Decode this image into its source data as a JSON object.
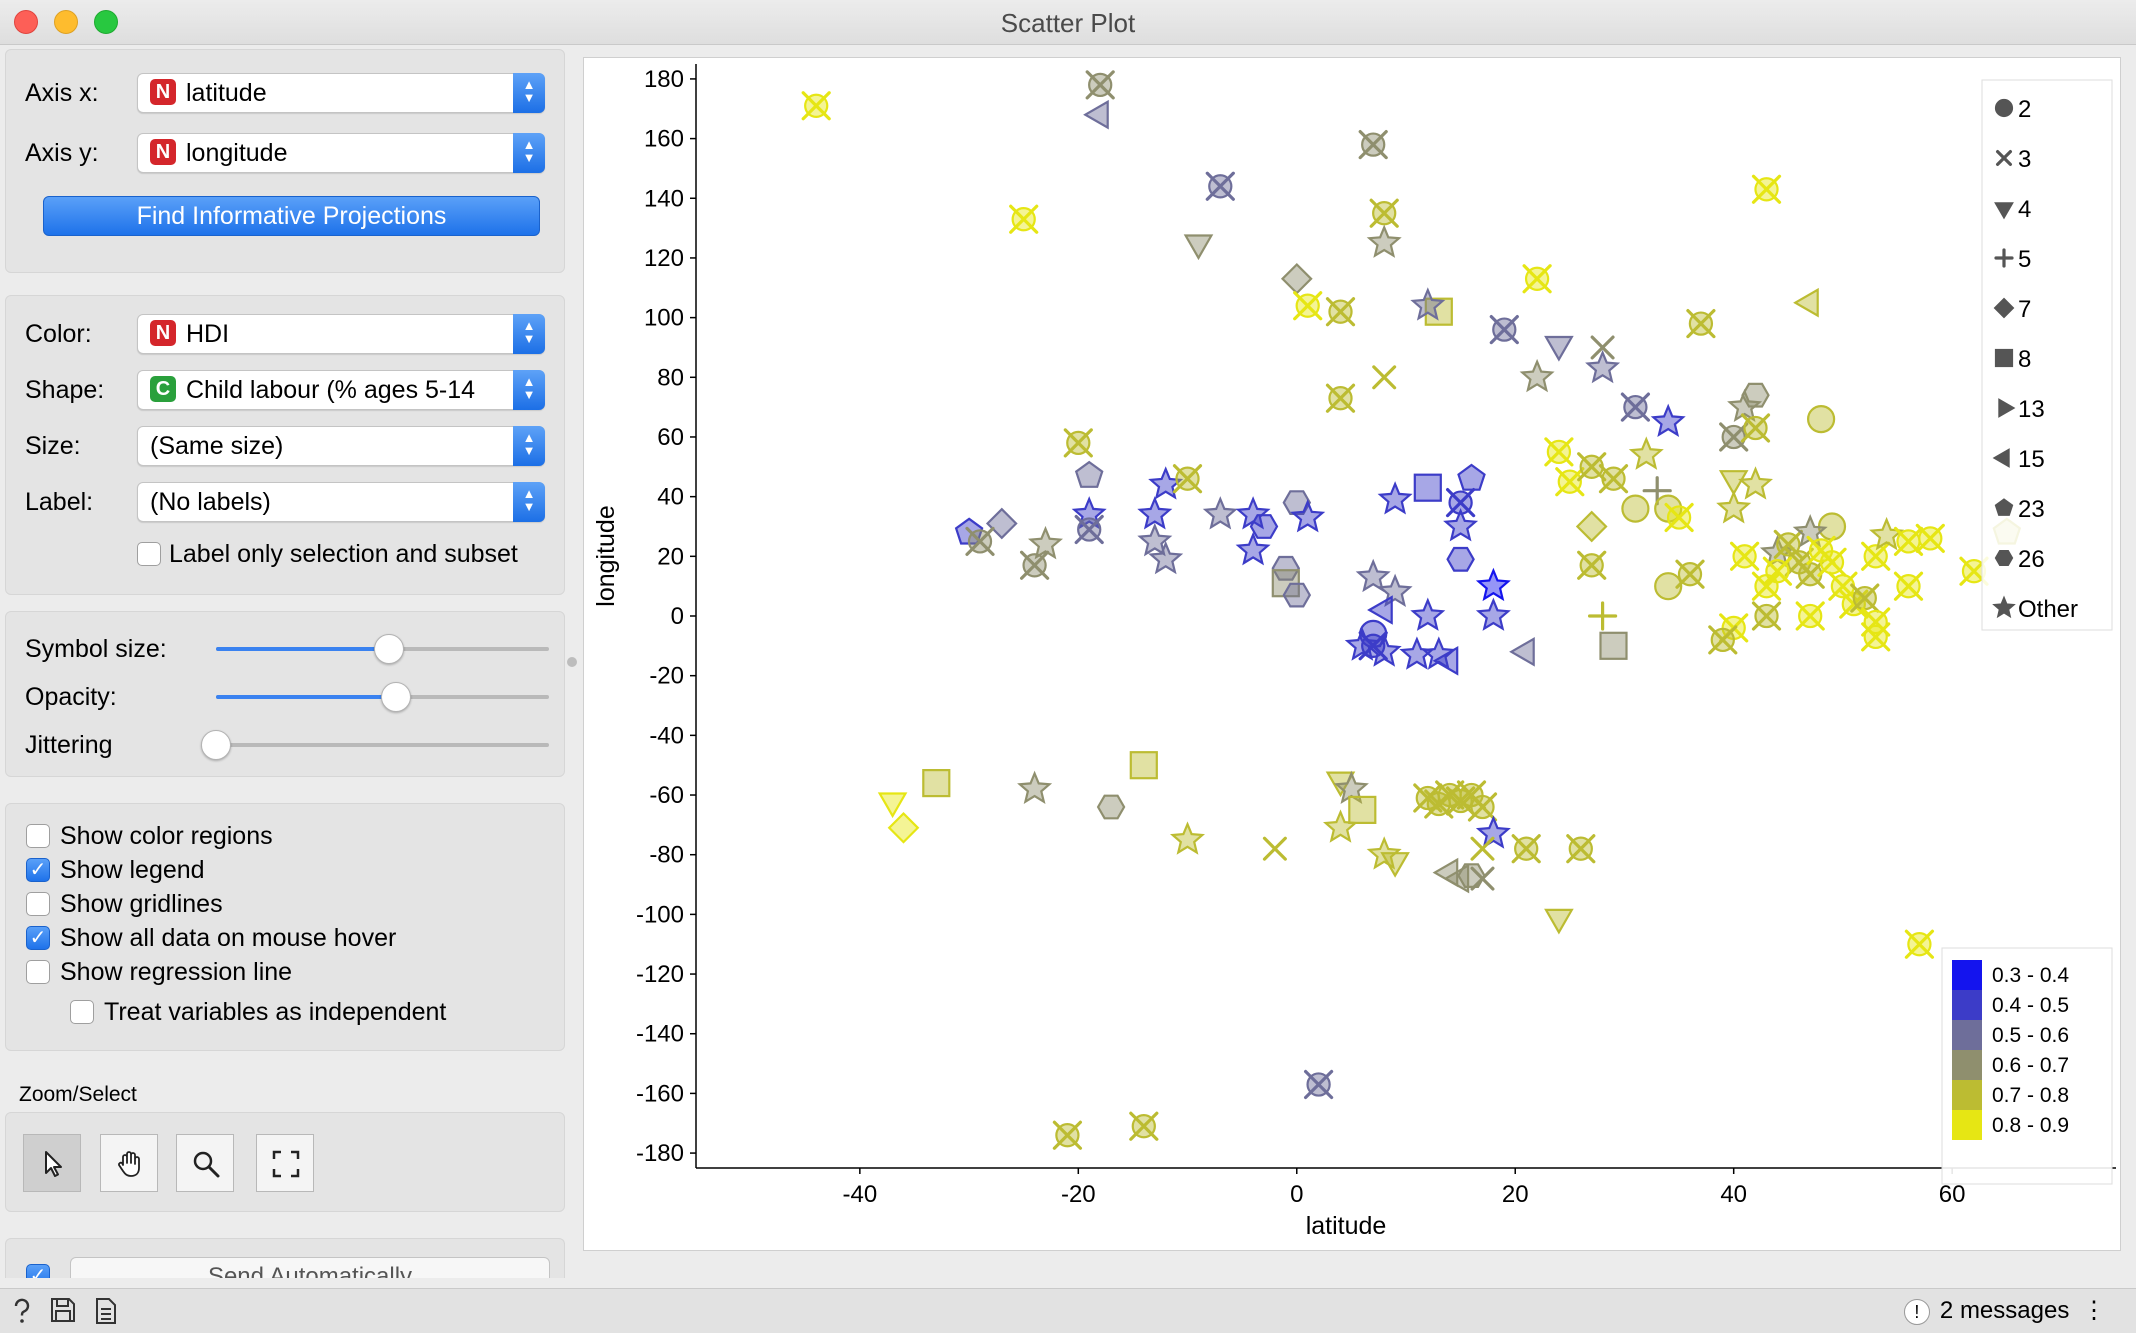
{
  "window": {
    "title": "Scatter Plot"
  },
  "axes_box": {
    "axis_x_label": "Axis x:",
    "axis_x_badge": "N",
    "axis_x_value": "latitude",
    "axis_y_label": "Axis y:",
    "axis_y_badge": "N",
    "axis_y_value": "longitude",
    "find_button": "Find Informative Projections"
  },
  "attr_box": {
    "color_label": "Color:",
    "color_badge": "N",
    "color_value": "HDI",
    "shape_label": "Shape:",
    "shape_badge": "C",
    "shape_value": "Child labour  (% ages 5-14",
    "size_label": "Size:",
    "size_value": "(Same size)",
    "label_label": "Label:",
    "label_value": "(No labels)",
    "label_only_selection": "Label only selection and subset"
  },
  "sliders": {
    "symbol_size_label": "Symbol size:",
    "symbol_size_level": 0.52,
    "opacity_label": "Opacity:",
    "opacity_level": 0.54,
    "jittering_label": "Jittering",
    "jittering_level": 0.0
  },
  "options": [
    {
      "label": "Show color regions",
      "checked": false
    },
    {
      "label": "Show legend",
      "checked": true
    },
    {
      "label": "Show gridlines",
      "checked": false
    },
    {
      "label": "Show all data on mouse hover",
      "checked": true
    },
    {
      "label": "Show regression line",
      "checked": false
    },
    {
      "label": "Treat variables as independent",
      "checked": false
    }
  ],
  "zoom_select": {
    "title": "Zoom/Select"
  },
  "send": {
    "label": "Send Automatically",
    "checked": true
  },
  "status": {
    "messages": "2 messages"
  },
  "icons": {
    "close": "close-icon",
    "minimize": "minimize-icon",
    "maximize": "maximize-icon",
    "help": "help-icon",
    "save": "save-icon",
    "report": "report-icon",
    "select": "pointer-icon",
    "pan": "hand-icon",
    "zoom": "magnifier-icon",
    "reset": "fit-icon",
    "warning": "warning-icon"
  },
  "colors": {
    "accent": "#1e72ea",
    "hdi_0.3-0.4": "#1414ee",
    "hdi_0.4-0.5": "#3c3cc8",
    "hdi_0.5-0.6": "#6e6e9a",
    "hdi_0.6-0.7": "#8f8f6e",
    "hdi_0.7-0.8": "#bcbc32",
    "hdi_0.8-0.9": "#e6e614"
  },
  "chart_data": {
    "type": "scatter",
    "xlabel": "latitude",
    "ylabel": "longitude",
    "xlim": [
      -55,
      75
    ],
    "ylim": [
      -185,
      185
    ],
    "xticks": [
      "-40",
      "-20",
      "0",
      "20",
      "40",
      "60"
    ],
    "yticks": [
      "180",
      "160",
      "140",
      "120",
      "100",
      "80",
      "60",
      "40",
      "20",
      "0",
      "-20",
      "-40",
      "-60",
      "-80",
      "-100",
      "-120",
      "-140",
      "-160",
      "-180"
    ],
    "grid": false,
    "shape_legend": {
      "position": "top-right",
      "items": [
        {
          "shape": "circle",
          "label": "2"
        },
        {
          "shape": "x",
          "label": "3"
        },
        {
          "shape": "triangle-down",
          "label": "4"
        },
        {
          "shape": "plus",
          "label": "5"
        },
        {
          "shape": "diamond",
          "label": "7"
        },
        {
          "shape": "square",
          "label": "8"
        },
        {
          "shape": "triangle-right",
          "label": "13"
        },
        {
          "shape": "triangle-left",
          "label": "15"
        },
        {
          "shape": "pentagon",
          "label": "23"
        },
        {
          "shape": "hexagon",
          "label": "26"
        },
        {
          "shape": "star",
          "label": "Other"
        }
      ]
    },
    "color_legend": {
      "position": "bottom-right",
      "items": [
        {
          "label": "0.3 - 0.4",
          "color": "#1414ee"
        },
        {
          "label": "0.4 - 0.5",
          "color": "#3c3cc8"
        },
        {
          "label": "0.5 - 0.6",
          "color": "#6e6e9a"
        },
        {
          "label": "0.6 - 0.7",
          "color": "#8f8f6e"
        },
        {
          "label": "0.7 - 0.8",
          "color": "#bcbc32"
        },
        {
          "label": "0.8 - 0.9",
          "color": "#e6e614"
        }
      ]
    },
    "points": [
      {
        "x": -44,
        "y": 171,
        "s": "xc",
        "c": 5
      },
      {
        "x": -18,
        "y": 178,
        "s": "xc",
        "c": 3
      },
      {
        "x": -18,
        "y": 168,
        "s": "tl",
        "c": 2
      },
      {
        "x": -25,
        "y": 133,
        "s": "xc",
        "c": 5
      },
      {
        "x": -7,
        "y": 144,
        "s": "xc",
        "c": 2
      },
      {
        "x": -9,
        "y": 125,
        "s": "td",
        "c": 3
      },
      {
        "x": 7,
        "y": 158,
        "s": "xc",
        "c": 3
      },
      {
        "x": 8,
        "y": 135,
        "s": "xc",
        "c": 4
      },
      {
        "x": 8,
        "y": 125,
        "s": "st",
        "c": 3
      },
      {
        "x": 43,
        "y": 143,
        "s": "xc",
        "c": 5
      },
      {
        "x": 0,
        "y": 113,
        "s": "di",
        "c": 3
      },
      {
        "x": 1,
        "y": 104,
        "s": "xc",
        "c": 5
      },
      {
        "x": 4,
        "y": 102,
        "s": "xc",
        "c": 4
      },
      {
        "x": 13,
        "y": 102,
        "s": "sq",
        "c": 4
      },
      {
        "x": 12,
        "y": 104,
        "s": "st",
        "c": 2
      },
      {
        "x": 19,
        "y": 96,
        "s": "xc",
        "c": 2
      },
      {
        "x": 22,
        "y": 113,
        "s": "xc",
        "c": 5
      },
      {
        "x": 24,
        "y": 91,
        "s": "td",
        "c": 2
      },
      {
        "x": 28,
        "y": 90,
        "s": "x",
        "c": 3
      },
      {
        "x": 28,
        "y": 83,
        "s": "st",
        "c": 2
      },
      {
        "x": 22,
        "y": 80,
        "s": "st",
        "c": 3
      },
      {
        "x": 37,
        "y": 98,
        "s": "xc",
        "c": 4
      },
      {
        "x": 47,
        "y": 105,
        "s": "tl",
        "c": 4
      },
      {
        "x": 4,
        "y": 73,
        "s": "xc",
        "c": 4
      },
      {
        "x": 8,
        "y": 80,
        "s": "x",
        "c": 4
      },
      {
        "x": 31,
        "y": 70,
        "s": "xc",
        "c": 2
      },
      {
        "x": 34,
        "y": 65,
        "s": "st",
        "c": 1
      },
      {
        "x": 42,
        "y": 74,
        "s": "hx",
        "c": 3
      },
      {
        "x": 41,
        "y": 70,
        "s": "st",
        "c": 3
      },
      {
        "x": 48,
        "y": 66,
        "s": "ci",
        "c": 4
      },
      {
        "x": 40,
        "y": 60,
        "s": "xc",
        "c": 3
      },
      {
        "x": 42,
        "y": 63,
        "s": "xc",
        "c": 4
      },
      {
        "x": -20,
        "y": 58,
        "s": "xc",
        "c": 4
      },
      {
        "x": -19,
        "y": 47,
        "s": "pe",
        "c": 2
      },
      {
        "x": -12,
        "y": 44,
        "s": "st",
        "c": 1
      },
      {
        "x": -10,
        "y": 46,
        "s": "xc",
        "c": 4
      },
      {
        "x": -19,
        "y": 34,
        "s": "st",
        "c": 1
      },
      {
        "x": -13,
        "y": 34,
        "s": "st",
        "c": 1
      },
      {
        "x": -7,
        "y": 34,
        "s": "st",
        "c": 2
      },
      {
        "x": -19,
        "y": 29,
        "s": "xc",
        "c": 2
      },
      {
        "x": -13,
        "y": 25,
        "s": "st",
        "c": 2
      },
      {
        "x": -12,
        "y": 19,
        "s": "st",
        "c": 2
      },
      {
        "x": -30,
        "y": 28,
        "s": "pe",
        "c": 1
      },
      {
        "x": -27,
        "y": 31,
        "s": "di",
        "c": 2
      },
      {
        "x": -29,
        "y": 25,
        "s": "xc",
        "c": 3
      },
      {
        "x": -23,
        "y": 24,
        "s": "st",
        "c": 3
      },
      {
        "x": -24,
        "y": 17,
        "s": "xc",
        "c": 3
      },
      {
        "x": -4,
        "y": 34,
        "s": "st",
        "c": 1
      },
      {
        "x": -4,
        "y": 22,
        "s": "st",
        "c": 1
      },
      {
        "x": -3,
        "y": 30,
        "s": "hx",
        "c": 1
      },
      {
        "x": 0,
        "y": 38,
        "s": "hx",
        "c": 2
      },
      {
        "x": 1,
        "y": 33,
        "s": "st",
        "c": 1
      },
      {
        "x": -1,
        "y": 16,
        "s": "hx",
        "c": 2
      },
      {
        "x": -1,
        "y": 11,
        "s": "sq",
        "c": 3
      },
      {
        "x": 0,
        "y": 7,
        "s": "hx",
        "c": 2
      },
      {
        "x": 12,
        "y": 43,
        "s": "sq",
        "c": 1
      },
      {
        "x": 16,
        "y": 46,
        "s": "pe",
        "c": 1
      },
      {
        "x": 9,
        "y": 39,
        "s": "st",
        "c": 1
      },
      {
        "x": 15,
        "y": 38,
        "s": "xc",
        "c": 1
      },
      {
        "x": 15,
        "y": 30,
        "s": "st",
        "c": 1
      },
      {
        "x": 15,
        "y": 19,
        "s": "hx",
        "c": 1
      },
      {
        "x": 18,
        "y": 10,
        "s": "st",
        "c": 0
      },
      {
        "x": 18,
        "y": 0,
        "s": "st",
        "c": 1
      },
      {
        "x": 7,
        "y": 13,
        "s": "st",
        "c": 2
      },
      {
        "x": 9,
        "y": 8,
        "s": "st",
        "c": 2
      },
      {
        "x": 8,
        "y": 2,
        "s": "tl",
        "c": 1
      },
      {
        "x": 12,
        "y": 0,
        "s": "st",
        "c": 1
      },
      {
        "x": 7,
        "y": -6,
        "s": "ci",
        "c": 1
      },
      {
        "x": 7,
        "y": -10,
        "s": "xc",
        "c": 1
      },
      {
        "x": 6,
        "y": -10,
        "s": "st",
        "c": 1
      },
      {
        "x": 8,
        "y": -12,
        "s": "st",
        "c": 1
      },
      {
        "x": 11,
        "y": -13,
        "s": "st",
        "c": 1
      },
      {
        "x": 13,
        "y": -13,
        "s": "st",
        "c": 1
      },
      {
        "x": 14,
        "y": -15,
        "s": "tl",
        "c": 1
      },
      {
        "x": 21,
        "y": -12,
        "s": "tl",
        "c": 2
      },
      {
        "x": 28,
        "y": 0,
        "s": "pl",
        "c": 4
      },
      {
        "x": 29,
        "y": -10,
        "s": "sq",
        "c": 3
      },
      {
        "x": 27,
        "y": 17,
        "s": "xc",
        "c": 4
      },
      {
        "x": 27,
        "y": 30,
        "s": "di",
        "c": 4
      },
      {
        "x": 24,
        "y": 55,
        "s": "xc",
        "c": 5
      },
      {
        "x": 25,
        "y": 45,
        "s": "xc",
        "c": 5
      },
      {
        "x": 27,
        "y": 50,
        "s": "xc",
        "c": 4
      },
      {
        "x": 29,
        "y": 46,
        "s": "xc",
        "c": 4
      },
      {
        "x": 32,
        "y": 54,
        "s": "st",
        "c": 4
      },
      {
        "x": 33,
        "y": 42,
        "s": "pl",
        "c": 3
      },
      {
        "x": 31,
        "y": 36,
        "s": "ci",
        "c": 4
      },
      {
        "x": 34,
        "y": 36,
        "s": "ci",
        "c": 4
      },
      {
        "x": 35,
        "y": 33,
        "s": "xc",
        "c": 5
      },
      {
        "x": 34,
        "y": 10,
        "s": "ci",
        "c": 4
      },
      {
        "x": 36,
        "y": 14,
        "s": "xc",
        "c": 4
      },
      {
        "x": 40,
        "y": 46,
        "s": "td",
        "c": 4
      },
      {
        "x": 40,
        "y": 36,
        "s": "st",
        "c": 4
      },
      {
        "x": 42,
        "y": 44,
        "s": "st",
        "c": 4
      },
      {
        "x": 41,
        "y": 20,
        "s": "xc",
        "c": 5
      },
      {
        "x": 44,
        "y": 21,
        "s": "st",
        "c": 3
      },
      {
        "x": 45,
        "y": 24,
        "s": "xc",
        "c": 4
      },
      {
        "x": 46,
        "y": 18,
        "s": "xc",
        "c": 4
      },
      {
        "x": 47,
        "y": 14,
        "s": "xc",
        "c": 4
      },
      {
        "x": 49,
        "y": 30,
        "s": "ci",
        "c": 4
      },
      {
        "x": 47,
        "y": 28,
        "s": "st",
        "c": 3
      },
      {
        "x": 48,
        "y": 22,
        "s": "xc",
        "c": 5
      },
      {
        "x": 49,
        "y": 18,
        "s": "xc",
        "c": 5
      },
      {
        "x": 50,
        "y": 10,
        "s": "xc",
        "c": 5
      },
      {
        "x": 51,
        "y": 4,
        "s": "xc",
        "c": 5
      },
      {
        "x": 52,
        "y": 6,
        "s": "xc",
        "c": 4
      },
      {
        "x": 53,
        "y": -2,
        "s": "xc",
        "c": 5
      },
      {
        "x": 53,
        "y": -7,
        "s": "xc",
        "c": 5
      },
      {
        "x": 53,
        "y": 20,
        "s": "xc",
        "c": 5
      },
      {
        "x": 54,
        "y": 27,
        "s": "st",
        "c": 4
      },
      {
        "x": 56,
        "y": 25,
        "s": "xc",
        "c": 5
      },
      {
        "x": 58,
        "y": 26,
        "s": "xc",
        "c": 5
      },
      {
        "x": 56,
        "y": 10,
        "s": "xc",
        "c": 5
      },
      {
        "x": 62,
        "y": 15,
        "s": "xc",
        "c": 5
      },
      {
        "x": 65,
        "y": 28,
        "s": "pe",
        "c": 4
      },
      {
        "x": 43,
        "y": 10,
        "s": "xc",
        "c": 5
      },
      {
        "x": 43,
        "y": 0,
        "s": "xc",
        "c": 4
      },
      {
        "x": 40,
        "y": -4,
        "s": "xc",
        "c": 5
      },
      {
        "x": 39,
        "y": -8,
        "s": "xc",
        "c": 4
      },
      {
        "x": 47,
        "y": 0,
        "s": "xc",
        "c": 5
      },
      {
        "x": 44,
        "y": 15,
        "s": "xc",
        "c": 5
      },
      {
        "x": -37,
        "y": -62,
        "s": "td",
        "c": 5
      },
      {
        "x": -36,
        "y": -71,
        "s": "di",
        "c": 5
      },
      {
        "x": -33,
        "y": -56,
        "s": "sq",
        "c": 4
      },
      {
        "x": -24,
        "y": -58,
        "s": "st",
        "c": 3
      },
      {
        "x": -14,
        "y": -50,
        "s": "sq",
        "c": 4
      },
      {
        "x": -17,
        "y": -64,
        "s": "hx",
        "c": 3
      },
      {
        "x": -10,
        "y": -75,
        "s": "st",
        "c": 4
      },
      {
        "x": -2,
        "y": -78,
        "s": "x",
        "c": 4
      },
      {
        "x": 4,
        "y": -55,
        "s": "td",
        "c": 4
      },
      {
        "x": 5,
        "y": -58,
        "s": "st",
        "c": 3
      },
      {
        "x": 6,
        "y": -65,
        "s": "sq",
        "c": 4
      },
      {
        "x": 4,
        "y": -71,
        "s": "st",
        "c": 4
      },
      {
        "x": 8,
        "y": -80,
        "s": "st",
        "c": 4
      },
      {
        "x": 9,
        "y": -82,
        "s": "td",
        "c": 4
      },
      {
        "x": 12,
        "y": -61,
        "s": "xc",
        "c": 4
      },
      {
        "x": 13,
        "y": -63,
        "s": "xc",
        "c": 4
      },
      {
        "x": 14,
        "y": -60,
        "s": "xc",
        "c": 4
      },
      {
        "x": 15,
        "y": -62,
        "s": "xc",
        "c": 4
      },
      {
        "x": 16,
        "y": -60,
        "s": "xc",
        "c": 4
      },
      {
        "x": 17,
        "y": -64,
        "s": "xc",
        "c": 4
      },
      {
        "x": 18,
        "y": -73,
        "s": "st",
        "c": 1
      },
      {
        "x": 17,
        "y": -78,
        "s": "x",
        "c": 4
      },
      {
        "x": 21,
        "y": -78,
        "s": "xc",
        "c": 4
      },
      {
        "x": 26,
        "y": -78,
        "s": "xc",
        "c": 4
      },
      {
        "x": 14,
        "y": -86,
        "s": "tl",
        "c": 3
      },
      {
        "x": 16,
        "y": -87,
        "s": "hx",
        "c": 3
      },
      {
        "x": 17,
        "y": -88,
        "s": "x",
        "c": 3
      },
      {
        "x": 15,
        "y": -88,
        "s": "tl",
        "c": 3
      },
      {
        "x": 24,
        "y": -101,
        "s": "td",
        "c": 4
      },
      {
        "x": 57,
        "y": -110,
        "s": "xc",
        "c": 5
      },
      {
        "x": 2,
        "y": -157,
        "s": "xc",
        "c": 2
      },
      {
        "x": -21,
        "y": -174,
        "s": "xc",
        "c": 4
      },
      {
        "x": -14,
        "y": -171,
        "s": "xc",
        "c": 4
      }
    ]
  }
}
